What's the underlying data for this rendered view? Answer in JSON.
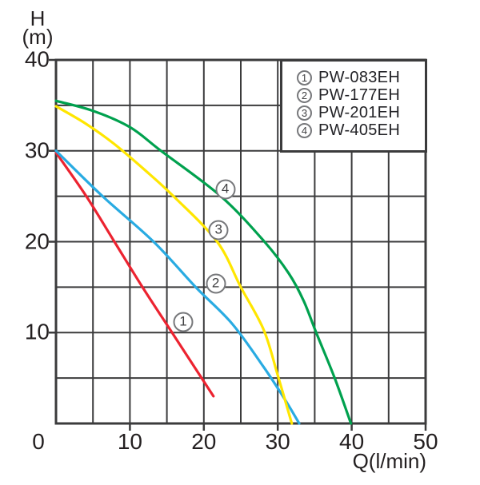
{
  "chart_data": {
    "type": "line",
    "title": "",
    "xlabel": "Q(l/min)",
    "ylabel": "H (m)",
    "ylabel_lines": [
      "H",
      "(m)"
    ],
    "xlim": [
      0,
      50
    ],
    "ylim": [
      0,
      40
    ],
    "x_ticks": [
      0,
      10,
      20,
      30,
      40,
      50
    ],
    "y_ticks": [
      10,
      20,
      30,
      40
    ],
    "grid": true,
    "grid_step_x": 5,
    "grid_step_y": 5,
    "grid_color": "#3b3b3c",
    "text_color": "#231f20",
    "legend_position": "top-right",
    "series": [
      {
        "id": "1",
        "name": "PW-083EH",
        "color": "#ec2330",
        "points": [
          [
            0,
            29.8
          ],
          [
            4.1,
            25
          ],
          [
            7.9,
            20
          ],
          [
            11.7,
            15
          ],
          [
            15.7,
            10
          ],
          [
            19.7,
            5
          ],
          [
            21.3,
            3.0
          ]
        ]
      },
      {
        "id": "2",
        "name": "PW-177EH",
        "color": "#29abe2",
        "points": [
          [
            0,
            30
          ],
          [
            6.3,
            25
          ],
          [
            13.2,
            20
          ],
          [
            18.9,
            15
          ],
          [
            23.8,
            11
          ],
          [
            28.1,
            6.2
          ],
          [
            31,
            2.6
          ],
          [
            32.9,
            0
          ]
        ]
      },
      {
        "id": "3",
        "name": "PW-201EH",
        "color": "#ffe600",
        "points": [
          [
            0,
            34.9
          ],
          [
            4,
            33
          ],
          [
            7.8,
            30.8
          ],
          [
            12,
            27.9
          ],
          [
            15.9,
            25
          ],
          [
            21.8,
            20
          ],
          [
            25,
            15
          ],
          [
            28.1,
            10.3
          ],
          [
            30,
            5.3
          ],
          [
            31.9,
            0
          ]
        ]
      },
      {
        "id": "4",
        "name": "PW-405EH",
        "color": "#00a14e",
        "points": [
          [
            0,
            35.5
          ],
          [
            5,
            34.4
          ],
          [
            10,
            32.6
          ],
          [
            14.2,
            30
          ],
          [
            22.3,
            25
          ],
          [
            28.2,
            20
          ],
          [
            31.5,
            16.5
          ],
          [
            33.5,
            13.5
          ],
          [
            35.2,
            10
          ],
          [
            37.7,
            5
          ],
          [
            39.9,
            0
          ]
        ]
      }
    ],
    "curve_labels": [
      {
        "id": "1",
        "q": 17.2,
        "h": 11.2
      },
      {
        "id": "2",
        "q": 21.6,
        "h": 15.4
      },
      {
        "id": "3",
        "q": 22.0,
        "h": 21.3
      },
      {
        "id": "4",
        "q": 22.9,
        "h": 25.8
      }
    ]
  }
}
